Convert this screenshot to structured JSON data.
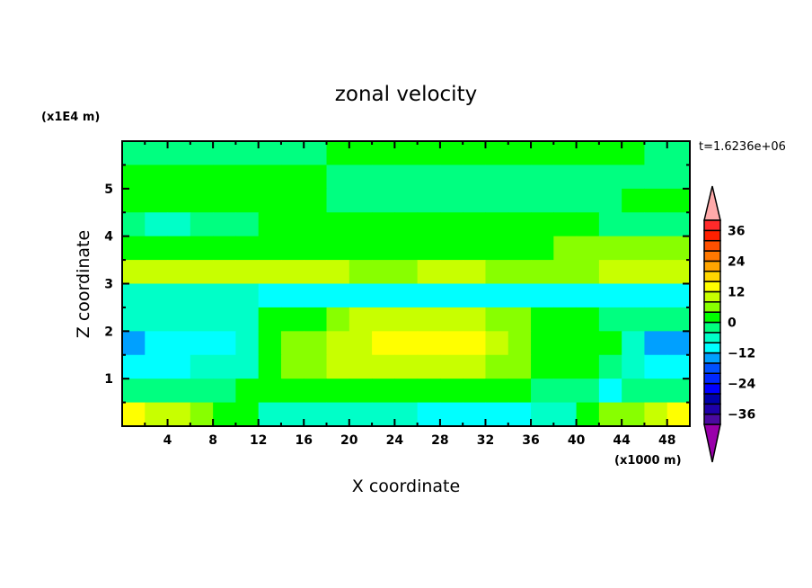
{
  "chart_data": {
    "type": "heatmap",
    "title": "zonal velocity",
    "xlabel": "X coordinate",
    "ylabel": "Z coordinate",
    "x_unit_label": "(x1000 m)",
    "y_unit_label": "(x1E4 m)",
    "time_label": "t=1.6236e+06",
    "xlim": [
      0,
      50
    ],
    "ylim": [
      0,
      6
    ],
    "x_ticks": [
      4,
      8,
      12,
      16,
      20,
      24,
      28,
      32,
      36,
      40,
      44,
      48
    ],
    "y_ticks": [
      1,
      2,
      3,
      4,
      5
    ],
    "x": [
      1,
      3,
      5,
      7,
      9,
      11,
      13,
      15,
      17,
      19,
      21,
      23,
      25,
      27,
      29,
      31,
      33,
      35,
      37,
      39,
      41,
      43,
      45,
      47,
      49
    ],
    "z": [
      5.75,
      5.25,
      4.75,
      4.25,
      3.75,
      3.25,
      2.75,
      2.25,
      1.75,
      1.25,
      0.75,
      0.25
    ],
    "values": [
      [
        -2,
        -2,
        -2,
        -2,
        -2,
        -2,
        -2,
        -2,
        -2,
        2,
        2,
        2,
        2,
        2,
        2,
        2,
        2,
        2,
        2,
        2,
        2,
        2,
        2,
        -2,
        -2
      ],
      [
        2,
        2,
        2,
        2,
        2,
        2,
        2,
        2,
        2,
        -2,
        -2,
        -2,
        -2,
        -2,
        -2,
        -2,
        -2,
        -2,
        -2,
        -2,
        -2,
        -2,
        -2,
        -2,
        -2
      ],
      [
        2,
        2,
        2,
        2,
        2,
        2,
        2,
        2,
        2,
        -2,
        -2,
        -2,
        -2,
        -2,
        -2,
        -2,
        -2,
        -2,
        -2,
        -2,
        -2,
        -2,
        2,
        2,
        2
      ],
      [
        -2,
        -6,
        -6,
        -2,
        -2,
        -2,
        2,
        2,
        2,
        2,
        2,
        2,
        2,
        2,
        2,
        2,
        2,
        2,
        2,
        2,
        2,
        -2,
        -2,
        -2,
        -2
      ],
      [
        2,
        2,
        2,
        2,
        2,
        2,
        2,
        2,
        2,
        2,
        2,
        2,
        2,
        2,
        2,
        2,
        2,
        2,
        2,
        6,
        6,
        6,
        6,
        6,
        6
      ],
      [
        10,
        10,
        10,
        10,
        10,
        10,
        10,
        10,
        10,
        10,
        6,
        6,
        6,
        10,
        10,
        10,
        6,
        6,
        6,
        6,
        6,
        10,
        10,
        10,
        10
      ],
      [
        -6,
        -6,
        -6,
        -6,
        -6,
        -6,
        -10,
        -10,
        -10,
        -10,
        -10,
        -10,
        -10,
        -10,
        -10,
        -10,
        -10,
        -10,
        -10,
        -10,
        -10,
        -10,
        -10,
        -10,
        -10
      ],
      [
        -6,
        -6,
        -6,
        -6,
        -6,
        -6,
        2,
        2,
        2,
        6,
        10,
        10,
        10,
        10,
        10,
        10,
        6,
        6,
        2,
        2,
        2,
        -2,
        -2,
        -2,
        -2
      ],
      [
        -14,
        -10,
        -10,
        -10,
        -10,
        -6,
        2,
        6,
        6,
        10,
        10,
        14,
        14,
        14,
        14,
        14,
        10,
        6,
        2,
        2,
        2,
        2,
        -6,
        -14,
        -14
      ],
      [
        -10,
        -10,
        -10,
        -6,
        -6,
        -6,
        2,
        6,
        6,
        10,
        10,
        10,
        10,
        10,
        10,
        10,
        6,
        6,
        2,
        2,
        2,
        -2,
        -6,
        -10,
        -10
      ],
      [
        -2,
        -2,
        -2,
        -2,
        -2,
        2,
        2,
        2,
        2,
        2,
        2,
        2,
        2,
        2,
        2,
        2,
        2,
        2,
        -2,
        -2,
        -2,
        -10,
        -2,
        -2,
        -2
      ],
      [
        14,
        10,
        10,
        6,
        2,
        2,
        -6,
        -6,
        -6,
        -6,
        -6,
        -6,
        -6,
        -10,
        -10,
        -10,
        -10,
        -10,
        -6,
        -6,
        2,
        6,
        6,
        10,
        14
      ]
    ],
    "colorbar": {
      "levels": [
        -40,
        -36,
        -32,
        -28,
        -24,
        -20,
        -16,
        -12,
        -8,
        -4,
        0,
        4,
        8,
        12,
        16,
        20,
        24,
        28,
        32,
        36,
        40
      ],
      "tick_labels": [
        "36",
        "24",
        "12",
        "0",
        "−12",
        "−24",
        "−36"
      ],
      "tick_values": [
        36,
        24,
        12,
        0,
        -12,
        -24,
        -36
      ],
      "colors": [
        "#4b0aa0",
        "#1e00aa",
        "#0000aa",
        "#0000ff",
        "#0028ff",
        "#0050ff",
        "#00a0ff",
        "#00ffff",
        "#00ffc8",
        "#00ff80",
        "#00ff00",
        "#88ff00",
        "#c8ff00",
        "#ffff00",
        "#ffd700",
        "#ffa500",
        "#ff7800",
        "#ff5000",
        "#ff2000",
        "#ff2a2a"
      ],
      "over_color": "#ffaaaa",
      "under_color": "#9900aa"
    }
  }
}
